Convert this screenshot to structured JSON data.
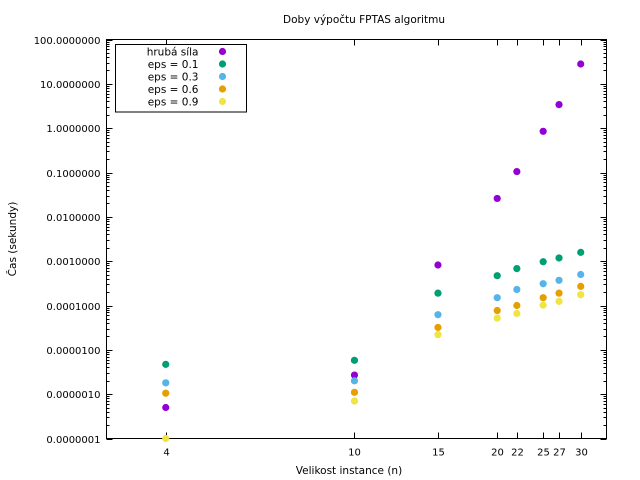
{
  "chart_data": {
    "type": "scatter",
    "title": "Doby výpočtu FPTAS algoritmu",
    "xlabel": "Velikost instance (n)",
    "ylabel": "Čas (sekundy)",
    "x_scale": "log",
    "y_scale": "log",
    "xlim": [
      3,
      34
    ],
    "ylim": [
      1e-07,
      100
    ],
    "x_ticks": [
      4,
      10,
      15,
      20,
      22,
      25,
      27,
      30
    ],
    "y_ticks": [
      {
        "value": 100,
        "label": "100.0000000"
      },
      {
        "value": 10,
        "label": "10.0000000"
      },
      {
        "value": 1,
        "label": "1.0000000"
      },
      {
        "value": 0.1,
        "label": "0.1000000"
      },
      {
        "value": 0.01,
        "label": "0.0100000"
      },
      {
        "value": 0.001,
        "label": "0.0010000"
      },
      {
        "value": 0.0001,
        "label": "0.0001000"
      },
      {
        "value": 1e-05,
        "label": "0.0000100"
      },
      {
        "value": 1e-06,
        "label": "0.0000010"
      },
      {
        "value": 1e-07,
        "label": "0.0000001"
      }
    ],
    "grid": false,
    "legend_position": "top-left",
    "series": [
      {
        "name": "hrubá síla",
        "color": "#9400d3",
        "x": [
          4,
          10,
          15,
          20,
          22,
          25,
          27,
          30
        ],
        "y": [
          5e-07,
          2.7e-06,
          0.00082,
          0.026,
          0.105,
          0.85,
          3.4,
          28
        ]
      },
      {
        "name": "eps = 0.1",
        "color": "#009e73",
        "x": [
          4,
          10,
          15,
          20,
          22,
          25,
          27,
          30
        ],
        "y": [
          4.7e-06,
          5.8e-06,
          0.00019,
          0.00047,
          0.00068,
          0.00097,
          0.00118,
          0.00158
        ]
      },
      {
        "name": "eps = 0.3",
        "color": "#56b4e9",
        "x": [
          4,
          10,
          15,
          20,
          22,
          25,
          27,
          30
        ],
        "y": [
          1.8e-06,
          2e-06,
          6.2e-05,
          0.00015,
          0.00023,
          0.00031,
          0.00037,
          0.0005
        ]
      },
      {
        "name": "eps = 0.6",
        "color": "#e69f00",
        "x": [
          4,
          10,
          15,
          20,
          22,
          25,
          27,
          30
        ],
        "y": [
          1.05e-06,
          1.1e-06,
          3.2e-05,
          7.7e-05,
          0.0001,
          0.00015,
          0.00019,
          0.00027
        ]
      },
      {
        "name": "eps = 0.9",
        "color": "#f0e442",
        "x": [
          4,
          10,
          15,
          20,
          22,
          25,
          27,
          30
        ],
        "y": [
          1e-07,
          7e-07,
          2.2e-05,
          5.2e-05,
          6.6e-05,
          0.000102,
          0.000124,
          0.000175
        ]
      }
    ]
  }
}
